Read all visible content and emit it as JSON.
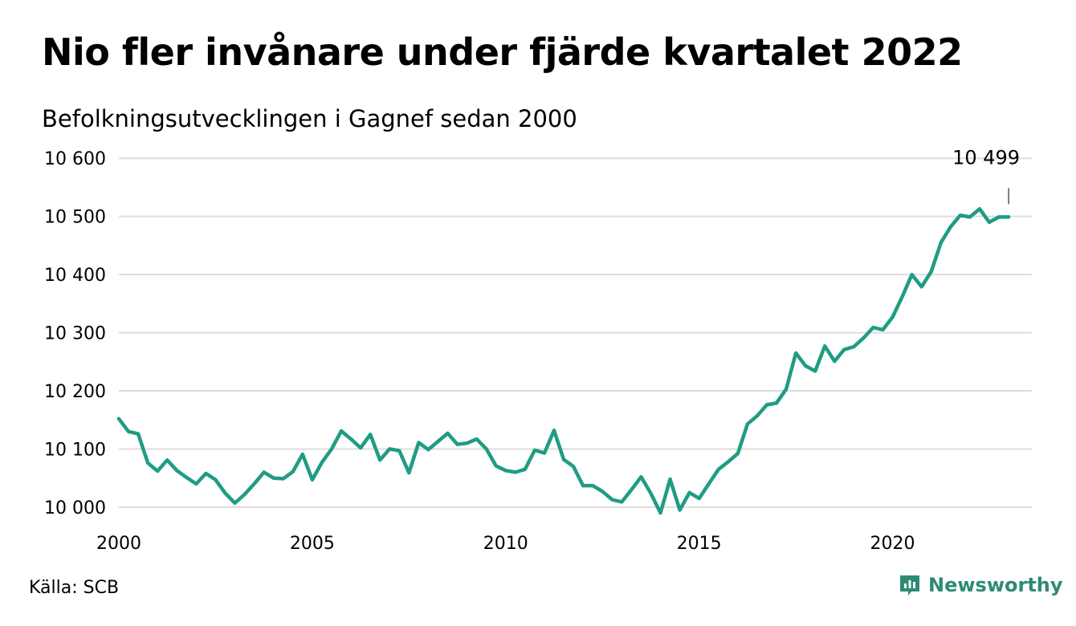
{
  "title": "Nio fler invånare under fjärde kvartalet 2022",
  "subtitle": "Befolkningsutvecklingen i Gagnef sedan 2000",
  "source": "Källa: SCB",
  "brand": "Newsworthy",
  "colors": {
    "line": "#1f9c84",
    "grid": "#dddddd",
    "brand": "#2e8b74"
  },
  "chart_data": {
    "type": "line",
    "title": "Nio fler invånare under fjärde kvartalet 2022",
    "subtitle": "Befolkningsutvecklingen i Gagnef sedan 2000",
    "ylim": [
      9975,
      10610
    ],
    "xlim": [
      2000,
      2023.6
    ],
    "yticks": [
      10000,
      10100,
      10200,
      10300,
      10400,
      10500,
      10600
    ],
    "ytick_labels": [
      "10 000",
      "10 100",
      "10 200",
      "10 300",
      "10 400",
      "10 500",
      "10 600"
    ],
    "xticks": [
      2000,
      2005,
      2010,
      2015,
      2020
    ],
    "xtick_labels": [
      "2000",
      "2005",
      "2010",
      "2015",
      "2020"
    ],
    "grid": true,
    "annotation": {
      "label": "10 499",
      "x": 2023,
      "y": 10499
    },
    "series": [
      {
        "x": [
          2000.0,
          2000.25,
          2000.5,
          2000.75,
          2001.0,
          2001.25,
          2001.5,
          2001.75,
          2002.0,
          2002.25,
          2002.5,
          2002.75,
          2003.0,
          2003.25,
          2003.5,
          2003.75,
          2004.0,
          2004.25,
          2004.5,
          2004.75,
          2005.0,
          2005.25,
          2005.5,
          2005.75,
          2006.0,
          2006.25,
          2006.5,
          2006.75,
          2007.0,
          2007.25,
          2007.5,
          2007.75,
          2008.0,
          2008.25,
          2008.5,
          2008.75,
          2009.0,
          2009.25,
          2009.5,
          2009.75,
          2010.0,
          2010.25,
          2010.5,
          2010.75,
          2011.0,
          2011.25,
          2011.5,
          2011.75,
          2012.0,
          2012.25,
          2012.5,
          2012.75,
          2013.0,
          2013.25,
          2013.5,
          2013.75,
          2014.0,
          2014.25,
          2014.5,
          2014.75,
          2015.0,
          2015.25,
          2015.5,
          2015.75,
          2016.0,
          2016.25,
          2016.5,
          2016.75,
          2017.0,
          2017.25,
          2017.5,
          2017.75,
          2018.0,
          2018.25,
          2018.5,
          2018.75,
          2019.0,
          2019.25,
          2019.5,
          2019.75,
          2020.0,
          2020.25,
          2020.5,
          2020.75,
          2021.0,
          2021.25,
          2021.5,
          2021.75,
          2022.0,
          2022.25,
          2022.5,
          2022.75,
          2023.0
        ],
        "y": [
          10152,
          10130,
          10126,
          10076,
          10062,
          10081,
          10063,
          10051,
          10040,
          10058,
          10047,
          10024,
          10007,
          10022,
          10040,
          10060,
          10050,
          10049,
          10061,
          10091,
          10047,
          10077,
          10100,
          10131,
          10117,
          10102,
          10125,
          10081,
          10100,
          10097,
          10059,
          10111,
          10099,
          10113,
          10127,
          10108,
          10110,
          10117,
          10100,
          10071,
          10063,
          10060,
          10065,
          10098,
          10093,
          10132,
          10082,
          10070,
          10037,
          10037,
          10027,
          10013,
          10009,
          10030,
          10052,
          10024,
          9990,
          10048,
          9995,
          10025,
          10015,
          10040,
          10065,
          10078,
          10092,
          10143,
          10157,
          10176,
          10179,
          10203,
          10265,
          10243,
          10234,
          10277,
          10251,
          10271,
          10276,
          10291,
          10309,
          10305,
          10327,
          10362,
          10400,
          10379,
          10405,
          10455,
          10482,
          10502,
          10499,
          10513,
          10490,
          10499,
          10499
        ]
      }
    ]
  }
}
